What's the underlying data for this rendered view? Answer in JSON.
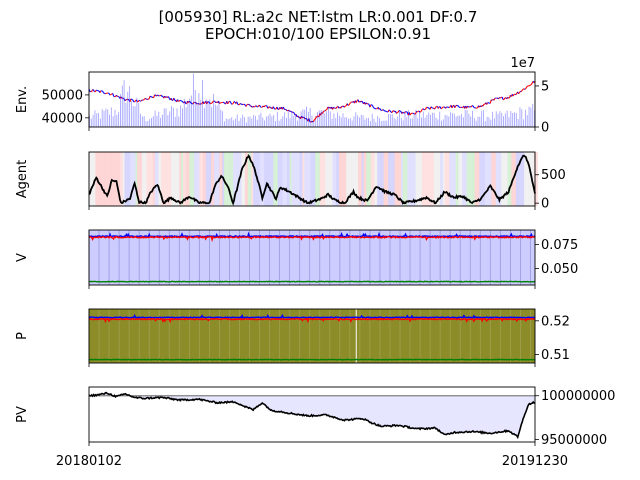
{
  "title": {
    "line1": "[005930] RL:a2c NET:lstm LR:0.001 DF:0.7",
    "line2": "EPOCH:010/100 EPSILON:0.91"
  },
  "colors": {
    "price_up": "#ff0000",
    "price_down": "#0000ff",
    "volume": "#0000ff",
    "agent_line": "#000000",
    "v_buy": "#ff0000",
    "v_sell": "#0000ff",
    "v_hold": "#008000",
    "v_background": "#ccccff",
    "p_background": "#8c8c28",
    "pv_fill": "#e6e6ff",
    "pv_line": "#000000",
    "baseline": "#808080"
  },
  "x_axis": {
    "start_label": "20180102",
    "end_label": "20191230",
    "num_days": 490
  },
  "chart_data": [
    {
      "type": "line",
      "name": "env",
      "ylabel": "Env.",
      "left_ticks": [
        "40000",
        "50000"
      ],
      "left_tick_values": [
        40000,
        50000
      ],
      "ylim_left": [
        36000,
        60000
      ],
      "right_ticks": [
        "0",
        "5"
      ],
      "right_tick_values": [
        0,
        50000000
      ],
      "right_offset_label": "1e7",
      "ylim_right": [
        0,
        67000000
      ],
      "price_knots": [
        [
          0,
          52000
        ],
        [
          20,
          51000
        ],
        [
          40,
          48000
        ],
        [
          55,
          47000
        ],
        [
          70,
          49500
        ],
        [
          85,
          49000
        ],
        [
          100,
          47000
        ],
        [
          120,
          46500
        ],
        [
          140,
          47000
        ],
        [
          160,
          46500
        ],
        [
          180,
          45000
        ],
        [
          200,
          44500
        ],
        [
          215,
          44000
        ],
        [
          230,
          40500
        ],
        [
          245,
          38500
        ],
        [
          260,
          44000
        ],
        [
          275,
          44500
        ],
        [
          295,
          47500
        ],
        [
          310,
          45000
        ],
        [
          325,
          43000
        ],
        [
          340,
          42500
        ],
        [
          355,
          41500
        ],
        [
          370,
          44000
        ],
        [
          385,
          44500
        ],
        [
          400,
          45000
        ],
        [
          415,
          44500
        ],
        [
          430,
          45000
        ],
        [
          445,
          48000
        ],
        [
          460,
          49000
        ],
        [
          475,
          52000
        ],
        [
          489,
          56000
        ]
      ],
      "volume_knots": [
        [
          0,
          12000000
        ],
        [
          30,
          20000000
        ],
        [
          40,
          48000000
        ],
        [
          60,
          10000000
        ],
        [
          100,
          22000000
        ],
        [
          120,
          55000000
        ],
        [
          150,
          10000000
        ],
        [
          200,
          12000000
        ],
        [
          250,
          18000000
        ],
        [
          300,
          11000000
        ],
        [
          350,
          14000000
        ],
        [
          400,
          15000000
        ],
        [
          450,
          13000000
        ],
        [
          489,
          20000000
        ]
      ]
    },
    {
      "type": "line",
      "name": "agent",
      "ylabel": "Agent",
      "ticks": [
        "0",
        "500"
      ],
      "tick_values": [
        0,
        500
      ],
      "ylim": [
        -50,
        900
      ],
      "knots": [
        [
          0,
          150
        ],
        [
          8,
          450
        ],
        [
          14,
          280
        ],
        [
          20,
          120
        ],
        [
          25,
          400
        ],
        [
          30,
          380
        ],
        [
          35,
          0
        ],
        [
          45,
          80
        ],
        [
          50,
          350
        ],
        [
          55,
          20
        ],
        [
          62,
          0
        ],
        [
          68,
          200
        ],
        [
          75,
          330
        ],
        [
          82,
          0
        ],
        [
          90,
          100
        ],
        [
          100,
          0
        ],
        [
          110,
          120
        ],
        [
          120,
          10
        ],
        [
          132,
          0
        ],
        [
          138,
          300
        ],
        [
          145,
          480
        ],
        [
          152,
          300
        ],
        [
          158,
          0
        ],
        [
          168,
          600
        ],
        [
          175,
          850
        ],
        [
          182,
          580
        ],
        [
          190,
          100
        ],
        [
          195,
          350
        ],
        [
          205,
          80
        ],
        [
          210,
          280
        ],
        [
          220,
          200
        ],
        [
          230,
          100
        ],
        [
          240,
          0
        ],
        [
          255,
          80
        ],
        [
          262,
          150
        ],
        [
          270,
          50
        ],
        [
          280,
          0
        ],
        [
          290,
          200
        ],
        [
          295,
          100
        ],
        [
          305,
          40
        ],
        [
          315,
          300
        ],
        [
          325,
          200
        ],
        [
          335,
          150
        ],
        [
          345,
          0
        ],
        [
          360,
          50
        ],
        [
          370,
          100
        ],
        [
          380,
          0
        ],
        [
          390,
          200
        ],
        [
          400,
          100
        ],
        [
          410,
          120
        ],
        [
          420,
          0
        ],
        [
          430,
          80
        ],
        [
          440,
          300
        ],
        [
          450,
          60
        ],
        [
          460,
          200
        ],
        [
          470,
          650
        ],
        [
          477,
          850
        ],
        [
          482,
          700
        ],
        [
          489,
          150
        ]
      ]
    },
    {
      "type": "line",
      "name": "value",
      "ylabel": "V",
      "ticks": [
        "0.050",
        "0.075"
      ],
      "tick_values": [
        0.05,
        0.075
      ],
      "ylim": [
        0.033,
        0.09
      ],
      "buy_level": 0.0825,
      "sell_level": 0.0835,
      "hold_level": 0.0365
    },
    {
      "type": "line",
      "name": "policy",
      "ylabel": "P",
      "ticks": [
        "0.51",
        "0.52"
      ],
      "tick_values": [
        0.51,
        0.52
      ],
      "ylim": [
        0.5075,
        0.5235
      ],
      "buy_level": 0.5205,
      "sell_level": 0.521,
      "hold_level": 0.5085
    },
    {
      "type": "area",
      "name": "portfolio_value",
      "ylabel": "PV",
      "ticks": [
        "95000000",
        "100000000"
      ],
      "tick_values": [
        95000000,
        100000000
      ],
      "ylim": [
        94700000,
        101000000
      ],
      "baseline": 100000000,
      "knots": [
        [
          0,
          100000000
        ],
        [
          10,
          100100000
        ],
        [
          20,
          100300000
        ],
        [
          30,
          99900000
        ],
        [
          40,
          100200000
        ],
        [
          50,
          99800000
        ],
        [
          60,
          99700000
        ],
        [
          80,
          99800000
        ],
        [
          100,
          99500000
        ],
        [
          120,
          99600000
        ],
        [
          140,
          99200000
        ],
        [
          160,
          99300000
        ],
        [
          170,
          98800000
        ],
        [
          180,
          98400000
        ],
        [
          190,
          99200000
        ],
        [
          200,
          98300000
        ],
        [
          210,
          98200000
        ],
        [
          220,
          98000000
        ],
        [
          240,
          97700000
        ],
        [
          260,
          97800000
        ],
        [
          280,
          97200000
        ],
        [
          300,
          97400000
        ],
        [
          310,
          96900000
        ],
        [
          320,
          96500000
        ],
        [
          340,
          96600000
        ],
        [
          360,
          96200000
        ],
        [
          380,
          96300000
        ],
        [
          390,
          95500000
        ],
        [
          400,
          95800000
        ],
        [
          420,
          95900000
        ],
        [
          440,
          95700000
        ],
        [
          460,
          96000000
        ],
        [
          470,
          95300000
        ],
        [
          478,
          98000000
        ],
        [
          482,
          99000000
        ],
        [
          489,
          99300000
        ]
      ]
    }
  ]
}
